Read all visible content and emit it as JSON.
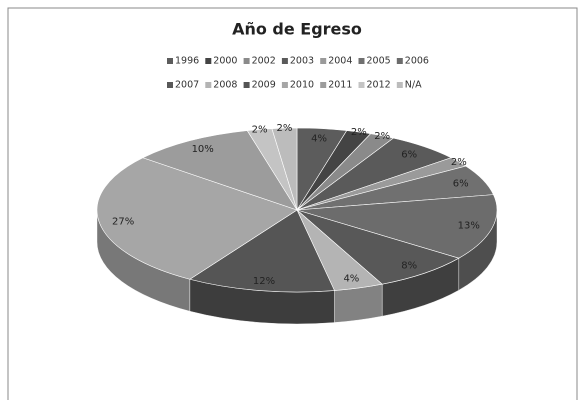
{
  "chart_data": {
    "type": "pie3d",
    "title": "Año de Egreso",
    "categories": [
      "1996",
      "2000",
      "2002",
      "2003",
      "2004",
      "2005",
      "2006",
      "2007",
      "2008",
      "2009",
      "2010",
      "2011",
      "2012",
      "N/A"
    ],
    "values": [
      4,
      2,
      2,
      6,
      2,
      6,
      13,
      8,
      4,
      12,
      27,
      10,
      2,
      2
    ],
    "value_labels": [
      "4%",
      "2%",
      "2%",
      "6%",
      "2%",
      "6%",
      "13%",
      "8%",
      "4%",
      "12%",
      "27%",
      "10%",
      "2%",
      "2%"
    ],
    "colors": [
      "#5c5c5c",
      "#444444",
      "#8a8a8a",
      "#5a5a5a",
      "#9a9a9a",
      "#707070",
      "#6c6c6c",
      "#585858",
      "#b4b4b4",
      "#555555",
      "#a6a6a6",
      "#9c9c9c",
      "#c4c4c4",
      "#bcbcbc"
    ],
    "legend": "top"
  }
}
